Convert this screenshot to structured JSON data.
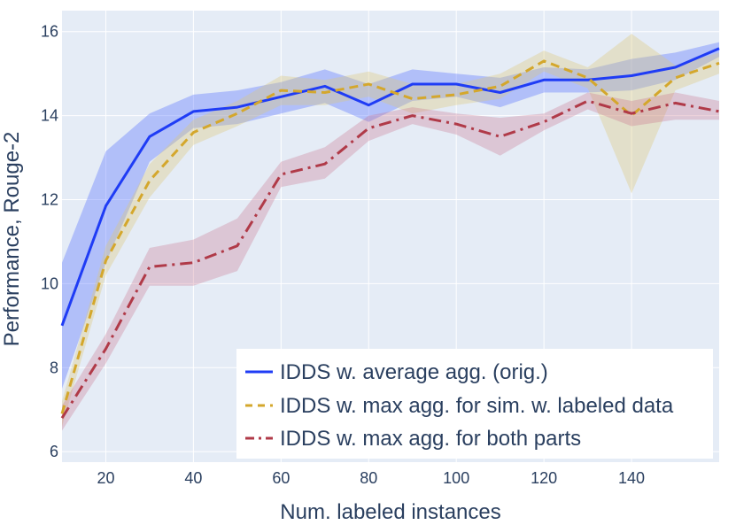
{
  "chart_data": {
    "type": "line",
    "xlabel": "Num. labeled instances",
    "ylabel": "Performance, Rouge-2",
    "xlim": [
      10,
      160
    ],
    "ylim": [
      5.75,
      16.5
    ],
    "xticks": [
      20,
      40,
      60,
      80,
      100,
      120,
      140
    ],
    "yticks": [
      6,
      8,
      10,
      12,
      14,
      16
    ],
    "grid": true,
    "legend_position": "bottom-right",
    "x": [
      10,
      20,
      30,
      40,
      50,
      60,
      70,
      80,
      90,
      100,
      110,
      120,
      130,
      140,
      150,
      160
    ],
    "series": [
      {
        "name": "IDDS w. average agg. (orig.)",
        "color": "#1f3cf5",
        "band_color": "rgba(99,125,255,0.40)",
        "dash": "solid",
        "values": [
          9.0,
          11.85,
          13.5,
          14.1,
          14.2,
          14.45,
          14.7,
          14.25,
          14.75,
          14.75,
          14.55,
          14.85,
          14.85,
          14.95,
          15.15,
          15.6
        ],
        "upper": [
          10.5,
          13.15,
          14.05,
          14.5,
          14.6,
          14.8,
          15.1,
          14.75,
          15.1,
          15.0,
          14.9,
          15.15,
          15.1,
          15.35,
          15.5,
          15.75
        ],
        "lower": [
          7.5,
          10.5,
          12.9,
          13.7,
          13.8,
          14.05,
          14.3,
          13.85,
          14.35,
          14.45,
          14.2,
          14.55,
          14.55,
          14.6,
          14.85,
          15.4
        ]
      },
      {
        "name": "IDDS w. max agg. for sim. w. labeled data",
        "color": "#d4a72c",
        "band_color": "rgba(222,200,120,0.35)",
        "dash": "dash",
        "values": [
          6.9,
          10.55,
          12.45,
          13.6,
          14.05,
          14.6,
          14.55,
          14.75,
          14.4,
          14.5,
          14.7,
          15.3,
          14.9,
          14.0,
          14.9,
          15.25
        ],
        "upper": [
          7.2,
          10.9,
          12.85,
          13.9,
          14.35,
          14.95,
          14.85,
          15.05,
          14.75,
          14.75,
          15.0,
          15.55,
          15.15,
          15.95,
          15.2,
          15.5
        ],
        "lower": [
          6.6,
          10.2,
          12.05,
          13.3,
          13.75,
          14.25,
          14.25,
          14.45,
          14.05,
          14.25,
          14.4,
          15.05,
          14.65,
          12.15,
          14.6,
          15.0
        ]
      },
      {
        "name": "IDDS w. max agg. for both parts",
        "color": "#b03a48",
        "band_color": "rgba(200,110,135,0.30)",
        "dash": "dashdot",
        "values": [
          6.8,
          8.45,
          10.4,
          10.5,
          10.9,
          12.6,
          12.85,
          13.7,
          14.0,
          13.8,
          13.5,
          13.85,
          14.35,
          14.05,
          14.3,
          14.1
        ],
        "upper": [
          7.1,
          8.8,
          10.85,
          11.05,
          11.55,
          12.9,
          13.25,
          14.0,
          14.2,
          14.05,
          13.95,
          14.05,
          14.55,
          14.35,
          14.55,
          14.35
        ],
        "lower": [
          6.5,
          8.1,
          9.95,
          9.95,
          10.3,
          12.3,
          12.5,
          13.4,
          13.8,
          13.55,
          13.05,
          13.65,
          14.15,
          13.75,
          13.9,
          13.9
        ]
      }
    ]
  }
}
